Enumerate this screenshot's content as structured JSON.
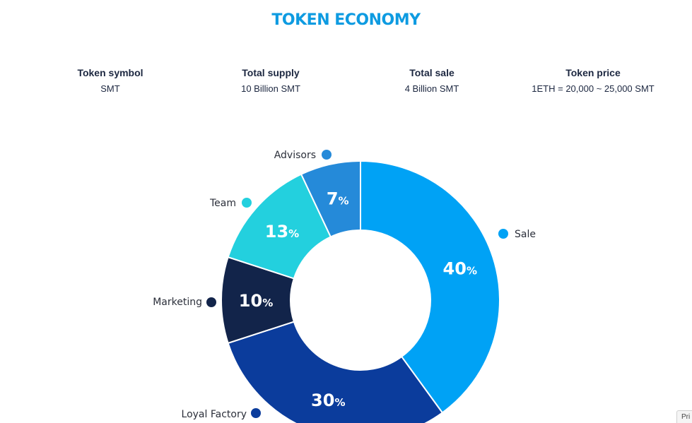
{
  "header": {
    "title": "TOKEN ECONOMY"
  },
  "stats": [
    {
      "label": "Token symbol",
      "value": "SMT"
    },
    {
      "label": "Total supply",
      "value": "10 Billion SMT"
    },
    {
      "label": "Total sale",
      "value": "4 Billion SMT"
    },
    {
      "label": "Token price",
      "value": "1ETH = 20,000 ~ 25,000 SMT"
    }
  ],
  "chart_data": {
    "type": "pie",
    "variant": "donut",
    "title": "",
    "start_angle_deg": 0,
    "direction": "clockwise",
    "slices": [
      {
        "label": "Sale",
        "value": 40,
        "value_text": "40",
        "unit": "%",
        "color": "#00a2f5"
      },
      {
        "label": "Loyal Factory",
        "value": 30,
        "value_text": "30",
        "unit": "%",
        "color": "#0b3c9c"
      },
      {
        "label": "Marketing",
        "value": 10,
        "value_text": "10",
        "unit": "%",
        "color": "#12244a"
      },
      {
        "label": "Team",
        "value": 13,
        "value_text": "13",
        "unit": "%",
        "color": "#23d0de"
      },
      {
        "label": "Advisors",
        "value": 7,
        "value_text": "7",
        "unit": "%",
        "color": "#258ad9"
      }
    ],
    "legend_placement": "around slices"
  },
  "floating_widget": {
    "label": "Pri"
  }
}
